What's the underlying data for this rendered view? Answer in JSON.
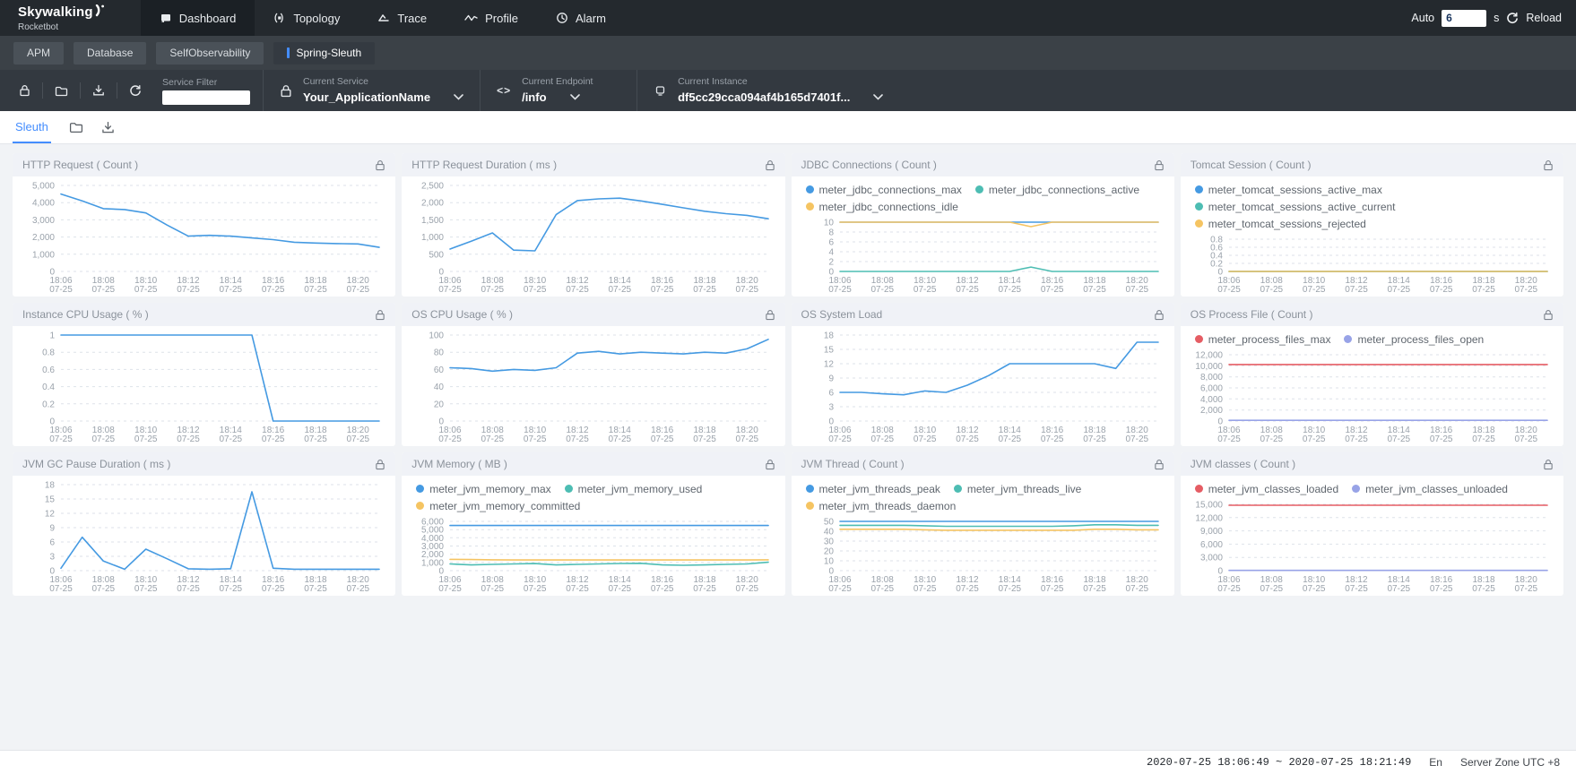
{
  "header": {
    "logo_title": "Skywalking",
    "logo_subtitle": "Rocketbot",
    "nav": [
      {
        "label": "Dashboard",
        "active": true
      },
      {
        "label": "Topology",
        "active": false
      },
      {
        "label": "Trace",
        "active": false
      },
      {
        "label": "Profile",
        "active": false
      },
      {
        "label": "Alarm",
        "active": false
      }
    ],
    "auto_label": "Auto",
    "auto_value": "6",
    "auto_unit": "s",
    "reload_label": "Reload"
  },
  "tabs": {
    "items": [
      {
        "label": "APM",
        "active": false
      },
      {
        "label": "Database",
        "active": false
      },
      {
        "label": "SelfObservability",
        "active": false
      },
      {
        "label": "Spring-Sleuth",
        "active": true
      }
    ]
  },
  "toolbar": {
    "service_filter_label": "Service Filter",
    "service_filter_value": "",
    "selectors": [
      {
        "label": "Current Service",
        "value": "Your_ApplicationName"
      },
      {
        "label": "Current Endpoint",
        "value": "/info"
      },
      {
        "label": "Current Instance",
        "value": "df5cc29cca094af4b165d7401f..."
      }
    ]
  },
  "subnav": {
    "active_tab": "Sleuth"
  },
  "footer": {
    "time_range": "2020-07-25 18:06:49 ~ 2020-07-25 18:21:49",
    "language": "En",
    "server_zone": "Server Zone UTC +8"
  },
  "chart_data": {
    "type": "line",
    "x_start": "18:06",
    "x_end": "18:21",
    "x_tick_labels": [
      "18:06",
      "18:08",
      "18:10",
      "18:12",
      "18:14",
      "18:16",
      "18:18",
      "18:20"
    ],
    "x_sub_label": "07-25",
    "palette": {
      "blue": "#459ae2",
      "teal": "#4dbdb3",
      "yellow": "#f5c462",
      "red": "#e55d64",
      "purple": "#98a3e7"
    },
    "grid": "dashed",
    "legend_position": "top",
    "panels": [
      {
        "title": "HTTP Request ( Count )",
        "ylim": [
          0,
          5000
        ],
        "yticks": [
          {
            "v": 0,
            "label": "0"
          },
          {
            "v": 1000,
            "label": "1,000"
          },
          {
            "v": 2000,
            "label": "2,000"
          },
          {
            "v": 3000,
            "label": "3,000"
          },
          {
            "v": 4000,
            "label": "4,000"
          },
          {
            "v": 5000,
            "label": "5,000"
          }
        ],
        "series": [
          {
            "name": null,
            "color": "blue",
            "values": [
              4500,
              4100,
              3650,
              3600,
              3400,
              2700,
              2050,
              2100,
              2050,
              1950,
              1850,
              1700,
              1650,
              1620,
              1600,
              1400
            ]
          }
        ]
      },
      {
        "title": "HTTP Request Duration ( ms )",
        "ylim": [
          0,
          2500
        ],
        "yticks": [
          {
            "v": 0,
            "label": "0"
          },
          {
            "v": 500,
            "label": "500"
          },
          {
            "v": 1000,
            "label": "1,000"
          },
          {
            "v": 1500,
            "label": "1,500"
          },
          {
            "v": 2000,
            "label": "2,000"
          },
          {
            "v": 2500,
            "label": "2,500"
          }
        ],
        "series": [
          {
            "name": null,
            "color": "blue",
            "values": [
              650,
              880,
              1120,
              620,
              600,
              1650,
              2060,
              2110,
              2130,
              2050,
              1950,
              1850,
              1750,
              1680,
              1630,
              1530
            ]
          }
        ]
      },
      {
        "title": "JDBC Connections ( Count )",
        "ylim": [
          0,
          10
        ],
        "yticks": [
          {
            "v": 0,
            "label": "0"
          },
          {
            "v": 2,
            "label": "2"
          },
          {
            "v": 4,
            "label": "4"
          },
          {
            "v": 6,
            "label": "6"
          },
          {
            "v": 8,
            "label": "8"
          },
          {
            "v": 10,
            "label": "10"
          }
        ],
        "series": [
          {
            "name": "meter_jdbc_connections_max",
            "color": "blue",
            "values": [
              10,
              10,
              10,
              10,
              10,
              10,
              10,
              10,
              10,
              10,
              10,
              10,
              10,
              10,
              10,
              10
            ]
          },
          {
            "name": "meter_jdbc_connections_active",
            "color": "teal",
            "values": [
              0,
              0,
              0,
              0,
              0,
              0,
              0,
              0,
              0,
              0.9,
              0,
              0,
              0,
              0,
              0,
              0
            ]
          },
          {
            "name": "meter_jdbc_connections_idle",
            "color": "yellow",
            "values": [
              10,
              10,
              10,
              10,
              10,
              10,
              10,
              10,
              10,
              9.1,
              10,
              10,
              10,
              10,
              10,
              10
            ]
          }
        ]
      },
      {
        "title": "Tomcat Session ( Count )",
        "ylim": [
          0,
          0.8
        ],
        "yticks": [
          {
            "v": 0,
            "label": "0"
          },
          {
            "v": 0.2,
            "label": "0.2"
          },
          {
            "v": 0.4,
            "label": "0.4"
          },
          {
            "v": 0.6,
            "label": "0.6"
          },
          {
            "v": 0.8,
            "label": "0.8"
          }
        ],
        "series": [
          {
            "name": "meter_tomcat_sessions_active_max",
            "color": "blue",
            "values": [
              0,
              0,
              0,
              0,
              0,
              0,
              0,
              0,
              0,
              0,
              0,
              0,
              0,
              0,
              0,
              0
            ]
          },
          {
            "name": "meter_tomcat_sessions_active_current",
            "color": "teal",
            "values": [
              0,
              0,
              0,
              0,
              0,
              0,
              0,
              0,
              0,
              0,
              0,
              0,
              0,
              0,
              0,
              0
            ]
          },
          {
            "name": "meter_tomcat_sessions_rejected",
            "color": "yellow",
            "values": [
              0,
              0,
              0,
              0,
              0,
              0,
              0,
              0,
              0,
              0,
              0,
              0,
              0,
              0,
              0,
              0
            ]
          }
        ]
      },
      {
        "title": "Instance CPU Usage ( % )",
        "ylim": [
          0,
          1
        ],
        "yticks": [
          {
            "v": 0,
            "label": "0"
          },
          {
            "v": 0.2,
            "label": "0.2"
          },
          {
            "v": 0.4,
            "label": "0.4"
          },
          {
            "v": 0.6,
            "label": "0.6"
          },
          {
            "v": 0.8,
            "label": "0.8"
          },
          {
            "v": 1,
            "label": "1"
          }
        ],
        "series": [
          {
            "name": null,
            "color": "blue",
            "values": [
              1,
              1,
              1,
              1,
              1,
              1,
              1,
              1,
              1,
              1,
              0,
              0,
              0,
              0,
              0,
              0
            ]
          }
        ]
      },
      {
        "title": "OS CPU Usage ( % )",
        "ylim": [
          0,
          100
        ],
        "yticks": [
          {
            "v": 0,
            "label": "0"
          },
          {
            "v": 20,
            "label": "20"
          },
          {
            "v": 40,
            "label": "40"
          },
          {
            "v": 60,
            "label": "60"
          },
          {
            "v": 80,
            "label": "80"
          },
          {
            "v": 100,
            "label": "100"
          }
        ],
        "series": [
          {
            "name": null,
            "color": "blue",
            "values": [
              62,
              61,
              58,
              60,
              59,
              62,
              79,
              81,
              78,
              80,
              79,
              78,
              80,
              79,
              84,
              95
            ]
          }
        ]
      },
      {
        "title": "OS System Load",
        "ylim": [
          0,
          18
        ],
        "yticks": [
          {
            "v": 0,
            "label": "0"
          },
          {
            "v": 3,
            "label": "3"
          },
          {
            "v": 6,
            "label": "6"
          },
          {
            "v": 9,
            "label": "9"
          },
          {
            "v": 12,
            "label": "12"
          },
          {
            "v": 15,
            "label": "15"
          },
          {
            "v": 18,
            "label": "18"
          }
        ],
        "series": [
          {
            "name": null,
            "color": "blue",
            "values": [
              6,
              6,
              5.7,
              5.5,
              6.3,
              6,
              7.5,
              9.5,
              12,
              12,
              12,
              12,
              12,
              11,
              16.5,
              16.5
            ]
          }
        ]
      },
      {
        "title": "OS Process File ( Count )",
        "ylim": [
          0,
          12000
        ],
        "yticks": [
          {
            "v": 0,
            "label": "0"
          },
          {
            "v": 2000,
            "label": "2,000"
          },
          {
            "v": 4000,
            "label": "4,000"
          },
          {
            "v": 6000,
            "label": "6,000"
          },
          {
            "v": 8000,
            "label": "8,000"
          },
          {
            "v": 10000,
            "label": "10,000"
          },
          {
            "v": 12000,
            "label": "12,000"
          }
        ],
        "series": [
          {
            "name": "meter_process_files_max",
            "color": "red",
            "values": [
              10240,
              10240,
              10240,
              10240,
              10240,
              10240,
              10240,
              10240,
              10240,
              10240,
              10240,
              10240,
              10240,
              10240,
              10240,
              10240
            ]
          },
          {
            "name": "meter_process_files_open",
            "color": "purple",
            "values": [
              130,
              130,
              130,
              130,
              130,
              130,
              130,
              130,
              130,
              130,
              130,
              130,
              130,
              130,
              130,
              130
            ]
          }
        ]
      },
      {
        "title": "JVM GC Pause Duration ( ms )",
        "ylim": [
          0,
          18
        ],
        "yticks": [
          {
            "v": 0,
            "label": "0"
          },
          {
            "v": 3,
            "label": "3"
          },
          {
            "v": 6,
            "label": "6"
          },
          {
            "v": 9,
            "label": "9"
          },
          {
            "v": 12,
            "label": "12"
          },
          {
            "v": 15,
            "label": "15"
          },
          {
            "v": 18,
            "label": "18"
          }
        ],
        "series": [
          {
            "name": null,
            "color": "blue",
            "values": [
              0.5,
              7,
              2,
              0.3,
              4.5,
              2.5,
              0.4,
              0.3,
              0.4,
              16.5,
              0.5,
              0.3,
              0.3,
              0.3,
              0.3,
              0.3
            ]
          }
        ]
      },
      {
        "title": "JVM Memory ( MB )",
        "ylim": [
          0,
          6000
        ],
        "yticks": [
          {
            "v": 0,
            "label": "0"
          },
          {
            "v": 1000,
            "label": "1,000"
          },
          {
            "v": 2000,
            "label": "2,000"
          },
          {
            "v": 3000,
            "label": "3,000"
          },
          {
            "v": 4000,
            "label": "4,000"
          },
          {
            "v": 5000,
            "label": "5,000"
          },
          {
            "v": 6000,
            "label": "6,000"
          }
        ],
        "series": [
          {
            "name": "meter_jvm_memory_max",
            "color": "blue",
            "values": [
              5500,
              5500,
              5500,
              5500,
              5500,
              5500,
              5500,
              5500,
              5500,
              5500,
              5500,
              5500,
              5500,
              5500,
              5500,
              5500
            ]
          },
          {
            "name": "meter_jvm_memory_used",
            "color": "teal",
            "values": [
              820,
              700,
              760,
              820,
              860,
              700,
              760,
              820,
              870,
              900,
              700,
              650,
              700,
              760,
              820,
              1020
            ]
          },
          {
            "name": "meter_jvm_memory_committed",
            "color": "yellow",
            "values": [
              1380,
              1350,
              1320,
              1300,
              1300,
              1300,
              1300,
              1300,
              1300,
              1300,
              1300,
              1300,
              1300,
              1300,
              1300,
              1320
            ]
          }
        ]
      },
      {
        "title": "JVM Thread ( Count )",
        "ylim": [
          0,
          50
        ],
        "yticks": [
          {
            "v": 0,
            "label": "0"
          },
          {
            "v": 10,
            "label": "10"
          },
          {
            "v": 20,
            "label": "20"
          },
          {
            "v": 30,
            "label": "30"
          },
          {
            "v": 40,
            "label": "40"
          },
          {
            "v": 50,
            "label": "50"
          }
        ],
        "series": [
          {
            "name": "meter_jvm_threads_peak",
            "color": "blue",
            "values": [
              50,
              50,
              50,
              50,
              50,
              50,
              50,
              50,
              50,
              50,
              50,
              50,
              50,
              50,
              50,
              50
            ]
          },
          {
            "name": "meter_jvm_threads_live",
            "color": "teal",
            "values": [
              46,
              46,
              46,
              46,
              45.5,
              45,
              45,
              45,
              45,
              45,
              45,
              45.5,
              46.5,
              46.5,
              46,
              46
            ]
          },
          {
            "name": "meter_jvm_threads_daemon",
            "color": "yellow",
            "values": [
              42,
              42,
              42,
              42,
              41.5,
              41,
              41,
              41,
              41,
              41,
              41,
              41,
              42,
              42,
              41.5,
              41.5
            ]
          }
        ]
      },
      {
        "title": "JVM classes ( Count )",
        "ylim": [
          0,
          15000
        ],
        "yticks": [
          {
            "v": 0,
            "label": "0"
          },
          {
            "v": 3000,
            "label": "3,000"
          },
          {
            "v": 6000,
            "label": "6,000"
          },
          {
            "v": 9000,
            "label": "9,000"
          },
          {
            "v": 12000,
            "label": "12,000"
          },
          {
            "v": 15000,
            "label": "15,000"
          }
        ],
        "series": [
          {
            "name": "meter_jvm_classes_loaded",
            "color": "red",
            "values": [
              14800,
              14800,
              14800,
              14800,
              14800,
              14800,
              14800,
              14800,
              14800,
              14800,
              14800,
              14800,
              14800,
              14800,
              14800,
              14800
            ]
          },
          {
            "name": "meter_jvm_classes_unloaded",
            "color": "purple",
            "values": [
              60,
              60,
              60,
              60,
              60,
              60,
              60,
              60,
              60,
              60,
              60,
              60,
              60,
              60,
              60,
              60
            ]
          }
        ]
      }
    ]
  }
}
